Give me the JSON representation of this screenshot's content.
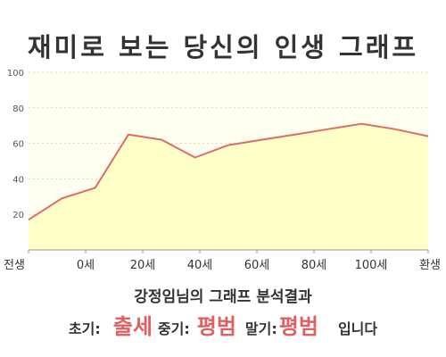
{
  "title": "재미로 보는 당신의 인생 그래프",
  "result": {
    "subtitle": "강정임님의 그래프 분석결과",
    "early_label": "초기:",
    "early_value": "출세",
    "mid_label": "중기:",
    "mid_value": "평범",
    "late_label": "말기:",
    "late_value": "평범",
    "suffix": "입니다"
  },
  "colors": {
    "line": "#e06a6a",
    "fill": "#ffffc8",
    "plot_bg": "#fffff0",
    "highlight": "#e06060"
  },
  "chart_data": {
    "type": "area",
    "title": "재미로 보는 당신의 인생 그래프",
    "xlabel": "",
    "ylabel": "",
    "ylim": [
      0,
      100
    ],
    "yticks": [
      20,
      40,
      60,
      80,
      100
    ],
    "grid": true,
    "xtick_labels": [
      "전생",
      "0세",
      "20세",
      "40세",
      "60세",
      "80세",
      "100세",
      "환생"
    ],
    "series": [
      {
        "values": [
          17,
          29,
          35,
          65,
          62,
          52,
          59,
          62,
          65,
          68,
          71,
          68,
          64
        ]
      }
    ]
  }
}
